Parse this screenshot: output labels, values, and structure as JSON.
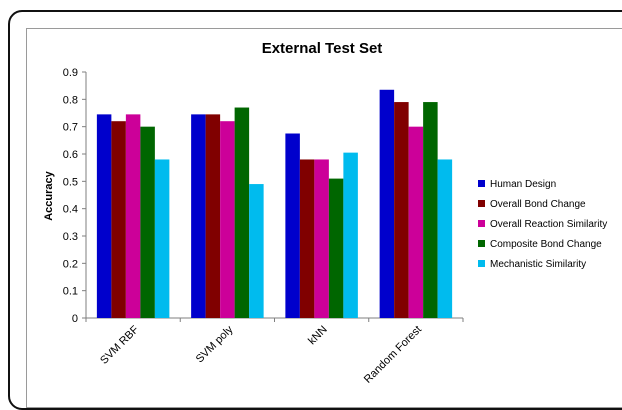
{
  "chart_data": {
    "type": "bar",
    "title": "External Test Set",
    "xlabel": "",
    "ylabel": "Accuracy",
    "ylim": [
      0,
      0.9
    ],
    "yticks": [
      "0",
      "0.1",
      "0.2",
      "0.3",
      "0.4",
      "0.5",
      "0.6",
      "0.7",
      "0.8",
      "0.9"
    ],
    "categories": [
      "SVM RBF",
      "SVM poly",
      "kNN",
      "Random Forest"
    ],
    "legend_position": "right",
    "grid": false,
    "series": [
      {
        "name": "Human Design",
        "color": "#0000cc",
        "values": [
          0.745,
          0.745,
          0.675,
          0.835
        ]
      },
      {
        "name": "Overall Bond Change",
        "color": "#800000",
        "values": [
          0.72,
          0.745,
          0.58,
          0.79
        ]
      },
      {
        "name": "Overall Reaction Similarity",
        "color": "#cc0099",
        "values": [
          0.745,
          0.72,
          0.58,
          0.7
        ]
      },
      {
        "name": "Composite Bond Change",
        "color": "#006600",
        "values": [
          0.7,
          0.77,
          0.51,
          0.79
        ]
      },
      {
        "name": "Mechanistic Similarity",
        "color": "#00bbee",
        "values": [
          0.58,
          0.49,
          0.605,
          0.58
        ]
      }
    ]
  }
}
